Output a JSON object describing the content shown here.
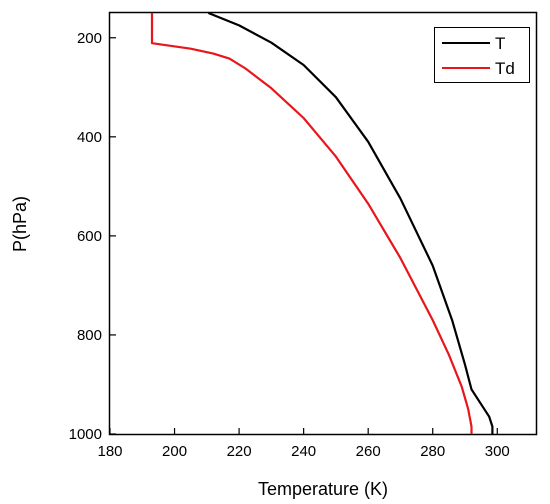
{
  "chart_data": {
    "type": "line",
    "xlabel": "Temperature (K)",
    "ylabel": "P(hPa)",
    "xlim": [
      180,
      312
    ],
    "ylim": [
      1000,
      150
    ],
    "y_inverted": true,
    "x_ticks": [
      180,
      200,
      220,
      240,
      260,
      280,
      300
    ],
    "y_ticks": [
      200,
      400,
      600,
      800,
      1000
    ],
    "grid": false,
    "legend_position": "top-right",
    "series": [
      {
        "name": "T",
        "color": "#000000",
        "points": [
          [
            210.5,
            150
          ],
          [
            220,
            175
          ],
          [
            230,
            210
          ],
          [
            240,
            255
          ],
          [
            250,
            320
          ],
          [
            260,
            410
          ],
          [
            270,
            525
          ],
          [
            280,
            660
          ],
          [
            286,
            770
          ],
          [
            290,
            860
          ],
          [
            292,
            910
          ],
          [
            295.5,
            945
          ],
          [
            297.5,
            965
          ],
          [
            298.5,
            985
          ],
          [
            298.5,
            1000
          ]
        ]
      },
      {
        "name": "Td",
        "color": "#e8161b",
        "points": [
          [
            193,
            150
          ],
          [
            193,
            211
          ],
          [
            205,
            222
          ],
          [
            212,
            232
          ],
          [
            217,
            242
          ],
          [
            222,
            262
          ],
          [
            230,
            302
          ],
          [
            240,
            362
          ],
          [
            250,
            440
          ],
          [
            260,
            535
          ],
          [
            270,
            645
          ],
          [
            280,
            770
          ],
          [
            285,
            840
          ],
          [
            289,
            905
          ],
          [
            291,
            950
          ],
          [
            292,
            985
          ],
          [
            292,
            1000
          ]
        ]
      }
    ]
  }
}
